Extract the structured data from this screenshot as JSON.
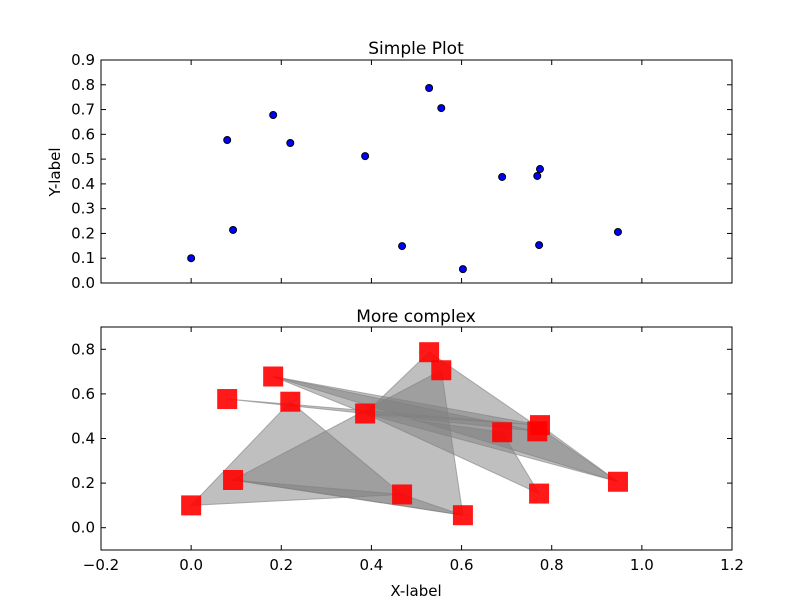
{
  "chart_data": [
    {
      "type": "scatter",
      "title": "Simple Plot",
      "xlabel": "",
      "ylabel": "Y-label",
      "xlim": [
        -0.2,
        1.2
      ],
      "ylim": [
        0.0,
        0.9
      ],
      "yticks": [
        "0.0",
        "0.1",
        "0.2",
        "0.3",
        "0.4",
        "0.5",
        "0.6",
        "0.7",
        "0.8",
        "0.9"
      ],
      "ytick_values": [
        0,
        0.1,
        0.2,
        0.3,
        0.4,
        0.5,
        0.6,
        0.7,
        0.8,
        0.9
      ],
      "xtick_values": [
        -0.2,
        0,
        0.2,
        0.4,
        0.6,
        0.8,
        1.0,
        1.2
      ],
      "marker_color": "#0000ff",
      "points": [
        [
          0.0,
          0.1
        ],
        [
          0.08,
          0.577
        ],
        [
          0.093,
          0.214
        ],
        [
          0.182,
          0.678
        ],
        [
          0.22,
          0.565
        ],
        [
          0.386,
          0.512
        ],
        [
          0.468,
          0.149
        ],
        [
          0.528,
          0.787
        ],
        [
          0.555,
          0.706
        ],
        [
          0.603,
          0.056
        ],
        [
          0.69,
          0.428
        ],
        [
          0.768,
          0.432
        ],
        [
          0.774,
          0.46
        ],
        [
          0.772,
          0.153
        ],
        [
          0.947,
          0.206
        ]
      ]
    },
    {
      "type": "scatter",
      "title": "More complex",
      "xlabel": "X-label",
      "ylabel": "",
      "xlim": [
        -0.2,
        1.2
      ],
      "ylim": [
        -0.1,
        0.9
      ],
      "xticks": [
        "−0.2",
        "0.0",
        "0.2",
        "0.4",
        "0.6",
        "0.8",
        "1.0",
        "1.2"
      ],
      "xtick_values": [
        -0.2,
        0,
        0.2,
        0.4,
        0.6,
        0.8,
        1.0,
        1.2
      ],
      "yticks": [
        "0.0",
        "0.2",
        "0.4",
        "0.6",
        "0.8"
      ],
      "ytick_values": [
        0,
        0.2,
        0.4,
        0.6,
        0.8
      ],
      "marker_color": "#ff0000",
      "fill_color": "#808080",
      "triangles": [
        [
          0,
          4,
          6
        ],
        [
          2,
          8,
          9
        ],
        [
          2,
          6,
          9
        ],
        [
          5,
          7,
          14
        ],
        [
          3,
          12,
          14
        ],
        [
          1,
          5,
          12
        ],
        [
          5,
          10,
          13
        ],
        [
          3,
          5,
          11
        ]
      ]
    }
  ]
}
